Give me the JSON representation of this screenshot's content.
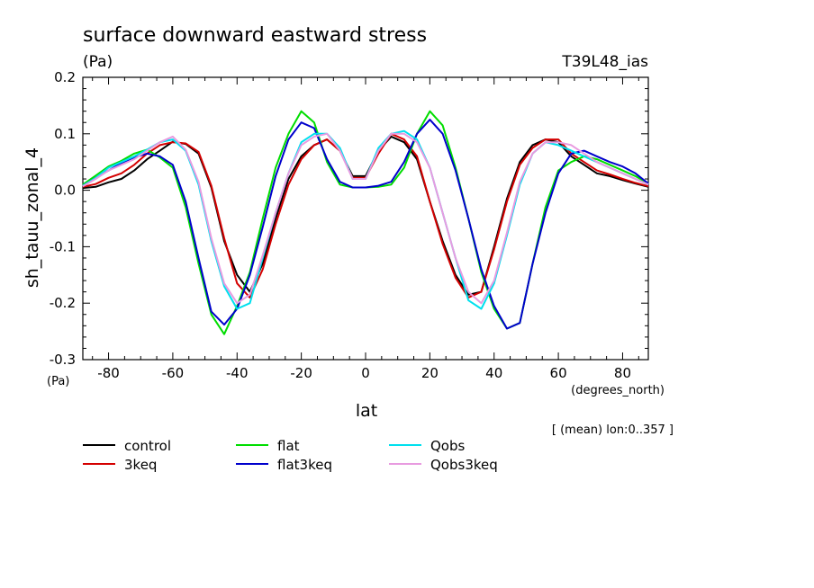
{
  "chart_data": {
    "type": "line",
    "title": "surface downward eastward stress",
    "y_units": "(Pa)",
    "run_label": "T39L48_ias",
    "ylabel": "sh_tauu_zonal_4",
    "ylabel_units": "(Pa)",
    "xlabel": "lat",
    "x_units": "(degrees_north)",
    "mean_note": "[ (mean) lon:0..357 ]",
    "xlim": [
      -88,
      88
    ],
    "ylim": [
      -0.3,
      0.2
    ],
    "x_ticks": [
      -80,
      -60,
      -40,
      -20,
      0,
      20,
      40,
      60,
      80
    ],
    "y_ticks": [
      -0.3,
      -0.2,
      -0.1,
      0.0,
      0.1,
      0.2
    ],
    "x_tick_labels": [
      "-80",
      "-60",
      "-40",
      "-20",
      "0",
      "20",
      "40",
      "60",
      "80"
    ],
    "y_tick_labels": [
      "-0.3",
      "-0.2",
      "-0.1",
      "0.0",
      "0.1",
      "0.2"
    ],
    "x": [
      -88,
      -84,
      -80,
      -76,
      -72,
      -68,
      -64,
      -60,
      -56,
      -52,
      -48,
      -44,
      -40,
      -36,
      -32,
      -28,
      -24,
      -20,
      -16,
      -12,
      -8,
      -4,
      0,
      4,
      8,
      12,
      16,
      20,
      24,
      28,
      32,
      36,
      40,
      44,
      48,
      52,
      56,
      60,
      64,
      68,
      72,
      76,
      80,
      84,
      88
    ],
    "series": [
      {
        "name": "control",
        "color": "#000000",
        "values": [
          0.004,
          0.006,
          0.014,
          0.02,
          0.035,
          0.055,
          0.07,
          0.086,
          0.082,
          0.065,
          0.005,
          -0.09,
          -0.15,
          -0.18,
          -0.13,
          -0.05,
          0.02,
          0.06,
          0.08,
          0.09,
          0.07,
          0.025,
          0.025,
          0.07,
          0.095,
          0.085,
          0.055,
          -0.02,
          -0.09,
          -0.15,
          -0.185,
          -0.18,
          -0.1,
          -0.015,
          0.05,
          0.08,
          0.09,
          0.085,
          0.06,
          0.045,
          0.03,
          0.025,
          0.018,
          0.012,
          0.006
        ]
      },
      {
        "name": "3keq",
        "color": "#d40000",
        "values": [
          0.006,
          0.011,
          0.022,
          0.03,
          0.045,
          0.065,
          0.08,
          0.085,
          0.083,
          0.068,
          0.008,
          -0.085,
          -0.165,
          -0.19,
          -0.14,
          -0.06,
          0.01,
          0.055,
          0.08,
          0.09,
          0.07,
          0.022,
          0.022,
          0.065,
          0.1,
          0.09,
          0.06,
          -0.02,
          -0.095,
          -0.155,
          -0.19,
          -0.18,
          -0.105,
          -0.02,
          0.045,
          0.075,
          0.09,
          0.09,
          0.065,
          0.05,
          0.035,
          0.028,
          0.02,
          0.013,
          0.007
        ]
      },
      {
        "name": "flat",
        "color": "#00dd00",
        "values": [
          0.01,
          0.026,
          0.042,
          0.052,
          0.065,
          0.072,
          0.058,
          0.04,
          -0.03,
          -0.13,
          -0.22,
          -0.255,
          -0.205,
          -0.145,
          -0.05,
          0.04,
          0.1,
          0.14,
          0.12,
          0.05,
          0.01,
          0.005,
          0.005,
          0.006,
          0.01,
          0.04,
          0.1,
          0.14,
          0.115,
          0.04,
          -0.05,
          -0.145,
          -0.21,
          -0.245,
          -0.235,
          -0.13,
          -0.03,
          0.035,
          0.05,
          0.06,
          0.055,
          0.045,
          0.035,
          0.025,
          0.012
        ]
      },
      {
        "name": "flat3keq",
        "color": "#0000cc",
        "values": [
          0.008,
          0.022,
          0.035,
          0.048,
          0.058,
          0.065,
          0.06,
          0.045,
          -0.02,
          -0.12,
          -0.215,
          -0.238,
          -0.21,
          -0.15,
          -0.065,
          0.025,
          0.09,
          0.12,
          0.11,
          0.055,
          0.015,
          0.005,
          0.005,
          0.008,
          0.015,
          0.05,
          0.1,
          0.125,
          0.1,
          0.035,
          -0.05,
          -0.14,
          -0.205,
          -0.245,
          -0.235,
          -0.13,
          -0.04,
          0.03,
          0.065,
          0.07,
          0.06,
          0.05,
          0.042,
          0.03,
          0.012
        ]
      },
      {
        "name": "Qobs",
        "color": "#00e0ee",
        "values": [
          0.008,
          0.022,
          0.04,
          0.05,
          0.06,
          0.072,
          0.085,
          0.09,
          0.07,
          0.01,
          -0.09,
          -0.17,
          -0.21,
          -0.2,
          -0.12,
          -0.04,
          0.03,
          0.085,
          0.1,
          0.1,
          0.075,
          0.02,
          0.02,
          0.075,
          0.1,
          0.105,
          0.09,
          0.04,
          -0.04,
          -0.12,
          -0.195,
          -0.21,
          -0.165,
          -0.08,
          0.01,
          0.065,
          0.085,
          0.08,
          0.07,
          0.06,
          0.05,
          0.04,
          0.03,
          0.02,
          0.01
        ]
      },
      {
        "name": "Qobs3keq",
        "color": "#e89be0",
        "values": [
          0.007,
          0.02,
          0.035,
          0.045,
          0.055,
          0.07,
          0.085,
          0.095,
          0.072,
          0.015,
          -0.085,
          -0.165,
          -0.2,
          -0.185,
          -0.115,
          -0.04,
          0.03,
          0.08,
          0.095,
          0.1,
          0.07,
          0.02,
          0.02,
          0.07,
          0.1,
          0.1,
          0.085,
          0.04,
          -0.04,
          -0.12,
          -0.18,
          -0.2,
          -0.16,
          -0.075,
          0.015,
          0.065,
          0.085,
          0.085,
          0.08,
          0.065,
          0.05,
          0.04,
          0.03,
          0.02,
          0.01
        ]
      }
    ],
    "legend_position": "below"
  }
}
